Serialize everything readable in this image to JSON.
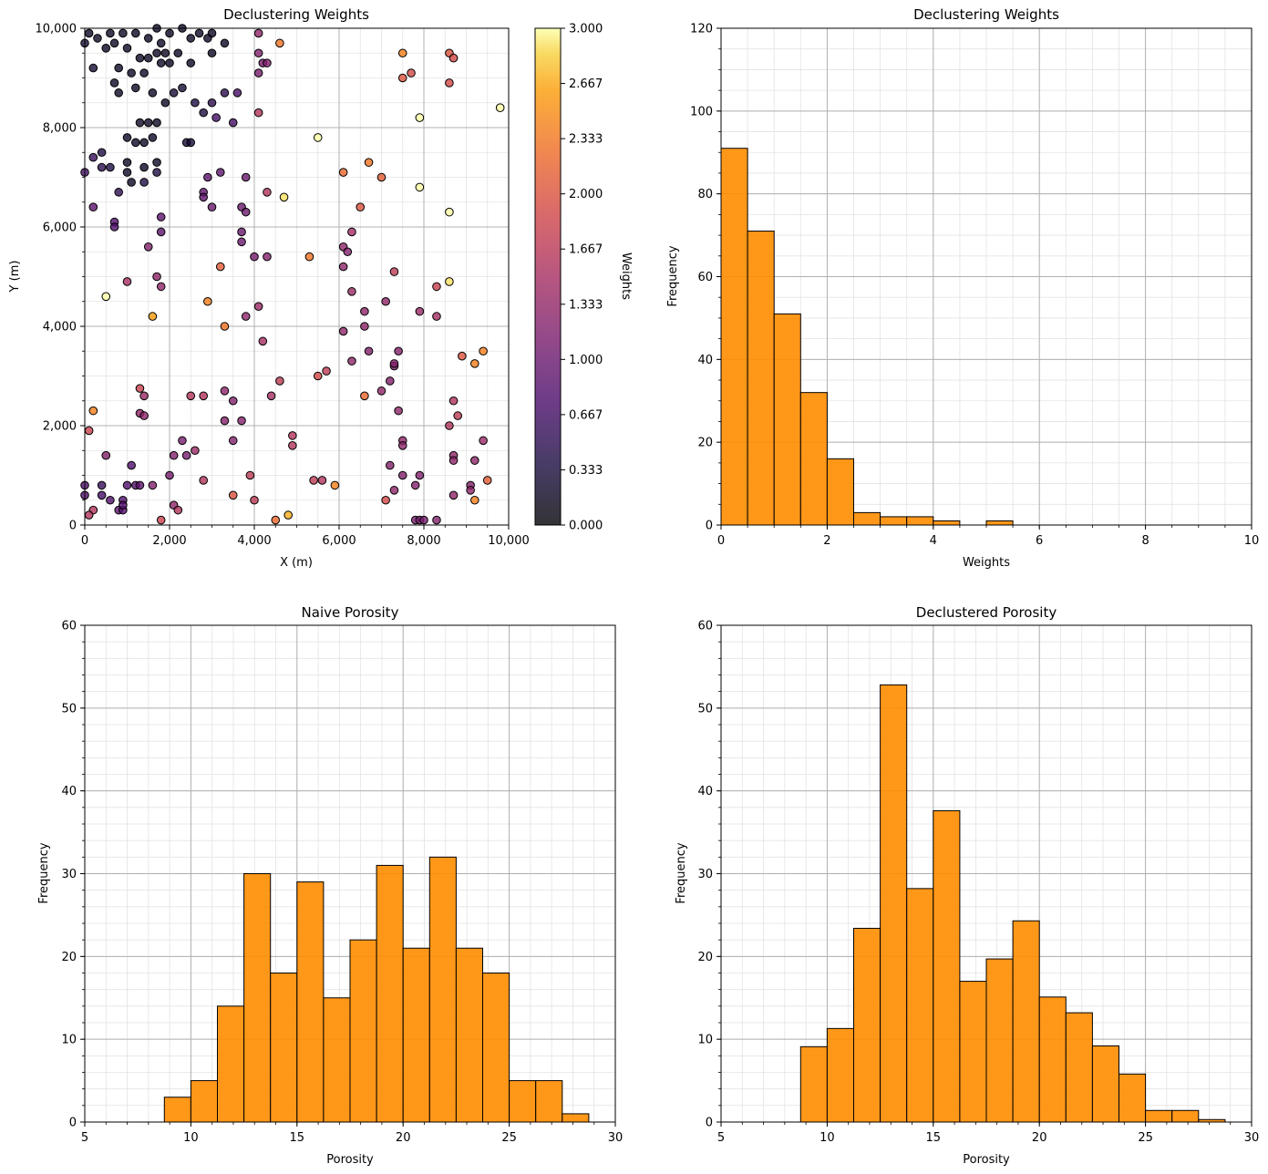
{
  "chart_data": [
    {
      "type": "scatter",
      "title": "Declustering Weights",
      "xlabel": "X (m)",
      "ylabel": "Y (m)",
      "xlim": [
        0,
        10000
      ],
      "ylim": [
        0,
        10000
      ],
      "xticks": [
        "0",
        "2,000",
        "4,000",
        "6,000",
        "8,000",
        "10,000"
      ],
      "yticks": [
        "0",
        "2,000",
        "4,000",
        "6,000",
        "8,000",
        "10,000"
      ],
      "grid": true,
      "colorbar": {
        "label": "Weights",
        "range": [
          0,
          3
        ],
        "ticks": [
          "0.000",
          "0.333",
          "0.667",
          "1.000",
          "1.333",
          "1.667",
          "2.000",
          "2.333",
          "2.667",
          "3.000"
        ],
        "colormap": "inferno"
      },
      "points": [
        [
          100,
          9900,
          0.2
        ],
        [
          300,
          9800,
          0.2
        ],
        [
          600,
          9900,
          0.2
        ],
        [
          500,
          9600,
          0.2
        ],
        [
          900,
          9900,
          0.2
        ],
        [
          1200,
          9900,
          0.2
        ],
        [
          1500,
          9800,
          0.2
        ],
        [
          1700,
          10000,
          0.2
        ],
        [
          2000,
          9900,
          0.2
        ],
        [
          2300,
          10000,
          0.2
        ],
        [
          2700,
          9900,
          0.2
        ],
        [
          3000,
          9900,
          0.2
        ],
        [
          1800,
          9700,
          0.2
        ],
        [
          2500,
          9800,
          0.2
        ],
        [
          2900,
          9800,
          0.2
        ],
        [
          3300,
          9700,
          0.2
        ],
        [
          200,
          9200,
          0.3
        ],
        [
          700,
          9700,
          0.2
        ],
        [
          800,
          9200,
          0.2
        ],
        [
          1000,
          9600,
          0.2
        ],
        [
          1300,
          9400,
          0.2
        ],
        [
          1500,
          9400,
          0.2
        ],
        [
          1700,
          9500,
          0.2
        ],
        [
          1900,
          9500,
          0.2
        ],
        [
          2200,
          9500,
          0.2
        ],
        [
          2500,
          9300,
          0.2
        ],
        [
          3000,
          9500,
          0.2
        ],
        [
          1100,
          9100,
          0.2
        ],
        [
          1400,
          9100,
          0.2
        ],
        [
          1800,
          9300,
          0.2
        ],
        [
          2000,
          9300,
          0.2
        ],
        [
          700,
          8900,
          0.2
        ],
        [
          800,
          8700,
          0.2
        ],
        [
          1200,
          8800,
          0.2
        ],
        [
          1600,
          8700,
          0.2
        ],
        [
          1900,
          8500,
          0.2
        ],
        [
          2100,
          8700,
          0.3
        ],
        [
          2300,
          8800,
          0.3
        ],
        [
          2600,
          8500,
          0.4
        ],
        [
          2800,
          8300,
          0.4
        ],
        [
          3000,
          8500,
          0.5
        ],
        [
          3300,
          8700,
          0.5
        ],
        [
          3600,
          8700,
          0.7
        ],
        [
          3100,
          8200,
          0.7
        ],
        [
          1300,
          8100,
          0.2
        ],
        [
          1500,
          8100,
          0.2
        ],
        [
          1700,
          8100,
          0.2
        ],
        [
          1000,
          7800,
          0.2
        ],
        [
          1200,
          7700,
          0.2
        ],
        [
          1400,
          7700,
          0.2
        ],
        [
          1600,
          7800,
          0.2
        ],
        [
          2400,
          7700,
          0.3
        ],
        [
          2500,
          7700,
          0.3
        ],
        [
          3500,
          8100,
          0.7
        ],
        [
          4100,
          8300,
          1.6
        ],
        [
          200,
          7400,
          0.6
        ],
        [
          400,
          7500,
          0.4
        ],
        [
          400,
          7200,
          0.5
        ],
        [
          600,
          7200,
          0.4
        ],
        [
          1000,
          7300,
          0.2
        ],
        [
          1000,
          7100,
          0.2
        ],
        [
          1400,
          7200,
          0.2
        ],
        [
          1700,
          7300,
          0.2
        ],
        [
          1100,
          6900,
          0.2
        ],
        [
          1400,
          6900,
          0.4
        ],
        [
          1700,
          7100,
          0.4
        ],
        [
          800,
          6700,
          0.5
        ],
        [
          0,
          7100,
          0.7
        ],
        [
          2900,
          7000,
          0.9
        ],
        [
          3200,
          7100,
          0.9
        ],
        [
          2800,
          6700,
          0.9
        ],
        [
          2800,
          6600,
          0.9
        ],
        [
          3000,
          6400,
          1.0
        ],
        [
          3800,
          7000,
          1.0
        ],
        [
          4300,
          6700,
          1.6
        ],
        [
          4700,
          6600,
          2.9
        ],
        [
          200,
          6400,
          0.9
        ],
        [
          700,
          6100,
          0.8
        ],
        [
          700,
          6000,
          0.8
        ],
        [
          1800,
          6200,
          0.9
        ],
        [
          1800,
          5900,
          0.9
        ],
        [
          1500,
          5600,
          1.2
        ],
        [
          3700,
          6400,
          1.0
        ],
        [
          3800,
          6300,
          1.0
        ],
        [
          3700,
          5900,
          1.0
        ],
        [
          3700,
          5700,
          1.0
        ],
        [
          4000,
          5400,
          1.1
        ],
        [
          4300,
          5400,
          1.2
        ],
        [
          3200,
          5200,
          2.1
        ],
        [
          5300,
          5400,
          2.3
        ],
        [
          500,
          4600,
          3.0
        ],
        [
          1000,
          4900,
          1.5
        ],
        [
          1700,
          5000,
          1.3
        ],
        [
          1800,
          4800,
          1.3
        ],
        [
          1600,
          4200,
          2.6
        ],
        [
          2900,
          4500,
          2.4
        ],
        [
          3800,
          4200,
          1.3
        ],
        [
          4100,
          4400,
          1.4
        ],
        [
          3300,
          4000,
          2.3
        ],
        [
          4200,
          3700,
          1.5
        ],
        [
          100,
          1900,
          1.8
        ],
        [
          200,
          2300,
          2.4
        ],
        [
          200,
          300,
          1.6
        ],
        [
          100,
          200,
          1.6
        ],
        [
          400,
          800,
          0.6
        ],
        [
          400,
          600,
          0.7
        ],
        [
          500,
          1400,
          1.2
        ],
        [
          600,
          500,
          0.8
        ],
        [
          800,
          300,
          0.9
        ],
        [
          900,
          300,
          0.8
        ],
        [
          900,
          500,
          0.8
        ],
        [
          900,
          400,
          0.8
        ],
        [
          1000,
          800,
          0.8
        ],
        [
          1100,
          1200,
          0.8
        ],
        [
          1200,
          800,
          0.8
        ],
        [
          1300,
          800,
          0.9
        ],
        [
          0,
          600,
          0.8
        ],
        [
          0,
          800,
          0.8
        ],
        [
          1300,
          2750,
          1.8
        ],
        [
          1400,
          2600,
          1.4
        ],
        [
          1300,
          2250,
          1.3
        ],
        [
          1400,
          2200,
          1.3
        ],
        [
          1600,
          800,
          1.2
        ],
        [
          1800,
          100,
          1.8
        ],
        [
          2000,
          1000,
          1.1
        ],
        [
          2100,
          1400,
          1.2
        ],
        [
          2100,
          400,
          1.3
        ],
        [
          2200,
          300,
          1.6
        ],
        [
          2300,
          1700,
          1.1
        ],
        [
          2400,
          1400,
          1.1
        ],
        [
          2500,
          2600,
          1.6
        ],
        [
          2600,
          1500,
          1.4
        ],
        [
          2800,
          2600,
          1.6
        ],
        [
          2800,
          900,
          1.6
        ],
        [
          3300,
          2700,
          1.3
        ],
        [
          3300,
          2100,
          1.2
        ],
        [
          3500,
          2500,
          1.2
        ],
        [
          3500,
          1700,
          1.2
        ],
        [
          3500,
          600,
          2.0
        ],
        [
          3700,
          2100,
          1.2
        ],
        [
          3900,
          1000,
          1.7
        ],
        [
          4000,
          500,
          1.7
        ],
        [
          4400,
          2600,
          1.5
        ],
        [
          4500,
          100,
          2.2
        ],
        [
          4600,
          2900,
          1.7
        ],
        [
          4800,
          200,
          2.7
        ],
        [
          4900,
          1800,
          1.6
        ],
        [
          4900,
          1600,
          1.6
        ],
        [
          5400,
          900,
          1.7
        ],
        [
          5500,
          3000,
          1.9
        ],
        [
          5600,
          900,
          1.6
        ],
        [
          5700,
          3100,
          1.7
        ],
        [
          5900,
          800,
          2.4
        ],
        [
          6100,
          3900,
          1.3
        ],
        [
          6100,
          5600,
          1.3
        ],
        [
          6100,
          5200,
          1.3
        ],
        [
          6200,
          5500,
          1.2
        ],
        [
          6300,
          4700,
          1.4
        ],
        [
          6300,
          5900,
          1.5
        ],
        [
          6300,
          3300,
          1.3
        ],
        [
          6600,
          4300,
          1.3
        ],
        [
          6600,
          4000,
          1.3
        ],
        [
          6700,
          3500,
          1.2
        ],
        [
          6600,
          2600,
          2.2
        ],
        [
          7000,
          2700,
          1.3
        ],
        [
          7100,
          4500,
          1.3
        ],
        [
          7100,
          500,
          1.9
        ],
        [
          7200,
          1200,
          1.2
        ],
        [
          7200,
          2900,
          1.2
        ],
        [
          7300,
          3200,
          1.2
        ],
        [
          7300,
          3250,
          1.2
        ],
        [
          7300,
          700,
          1.3
        ],
        [
          7300,
          5100,
          1.7
        ],
        [
          7400,
          3500,
          1.2
        ],
        [
          7400,
          2300,
          1.3
        ],
        [
          7500,
          1700,
          1.3
        ],
        [
          7500,
          1600,
          1.3
        ],
        [
          7500,
          1000,
          1.2
        ],
        [
          7800,
          100,
          1.1
        ],
        [
          7900,
          100,
          1.1
        ],
        [
          8000,
          100,
          1.1
        ],
        [
          7800,
          800,
          1.2
        ],
        [
          7900,
          1000,
          1.2
        ],
        [
          8300,
          100,
          1.2
        ],
        [
          7900,
          4300,
          1.4
        ],
        [
          8300,
          4200,
          1.5
        ],
        [
          8300,
          4800,
          1.8
        ],
        [
          8600,
          4900,
          2.9
        ],
        [
          8600,
          2000,
          1.6
        ],
        [
          8700,
          2500,
          1.6
        ],
        [
          8800,
          2200,
          1.7
        ],
        [
          8700,
          1400,
          1.3
        ],
        [
          8700,
          1300,
          1.3
        ],
        [
          8700,
          600,
          1.3
        ],
        [
          8900,
          3400,
          2.0
        ],
        [
          9100,
          800,
          1.2
        ],
        [
          9100,
          700,
          1.3
        ],
        [
          9200,
          1300,
          1.3
        ],
        [
          9200,
          500,
          2.4
        ],
        [
          9200,
          3250,
          2.4
        ],
        [
          9400,
          3500,
          2.4
        ],
        [
          9400,
          1700,
          1.4
        ],
        [
          9500,
          900,
          2.1
        ],
        [
          6100,
          7100,
          2.2
        ],
        [
          6500,
          6400,
          2.0
        ],
        [
          6700,
          7300,
          2.3
        ],
        [
          7000,
          7000,
          2.1
        ],
        [
          5500,
          7800,
          3.0
        ],
        [
          7500,
          9500,
          2.4
        ],
        [
          7500,
          9000,
          2.0
        ],
        [
          7700,
          9100,
          1.9
        ],
        [
          7900,
          8200,
          3.0
        ],
        [
          7900,
          6800,
          3.0
        ],
        [
          8600,
          9500,
          2.0
        ],
        [
          8700,
          9400,
          1.9
        ],
        [
          8600,
          8900,
          1.9
        ],
        [
          8600,
          6300,
          3.0
        ],
        [
          9800,
          8400,
          3.0
        ],
        [
          4100,
          9900,
          1.3
        ],
        [
          4100,
          9500,
          1.2
        ],
        [
          4200,
          9300,
          1.1
        ],
        [
          4100,
          9100,
          1.1
        ],
        [
          4300,
          9300,
          1.2
        ],
        [
          4600,
          9700,
          2.3
        ],
        [
          0,
          9700,
          0.3
        ]
      ]
    },
    {
      "type": "bar",
      "title": "Declustering Weights",
      "xlabel": "Weights",
      "ylabel": "Frequency",
      "xlim": [
        0,
        10
      ],
      "ylim": [
        0,
        120
      ],
      "xticks": [
        "0",
        "2",
        "4",
        "6",
        "8",
        "10"
      ],
      "yticks": [
        "0",
        "20",
        "40",
        "60",
        "80",
        "100",
        "120"
      ],
      "bin_start": 0,
      "bin_width": 0.5,
      "values": [
        91,
        71,
        51,
        32,
        16,
        3,
        2,
        2,
        1,
        0,
        1,
        0,
        0,
        0,
        0,
        0,
        0,
        0,
        0,
        0
      ],
      "grid": true
    },
    {
      "type": "bar",
      "title": "Naive Porosity",
      "xlabel": "Porosity",
      "ylabel": "Frequency",
      "xlim": [
        5,
        30
      ],
      "ylim": [
        0,
        60
      ],
      "xticks": [
        "5",
        "10",
        "15",
        "20",
        "25",
        "30"
      ],
      "yticks": [
        "0",
        "10",
        "20",
        "30",
        "40",
        "50",
        "60"
      ],
      "bin_start": 5,
      "bin_width": 1.25,
      "values": [
        0,
        0,
        0,
        3,
        5,
        14,
        30,
        18,
        29,
        15,
        22,
        31,
        21,
        32,
        21,
        18,
        5,
        5,
        1,
        0
      ],
      "grid": true
    },
    {
      "type": "bar",
      "title": "Declustered Porosity",
      "xlabel": "Porosity",
      "ylabel": "Frequency",
      "xlim": [
        5,
        30
      ],
      "ylim": [
        0,
        60
      ],
      "xticks": [
        "5",
        "10",
        "15",
        "20",
        "25",
        "30"
      ],
      "yticks": [
        "0",
        "10",
        "20",
        "30",
        "40",
        "50",
        "60"
      ],
      "bin_start": 5,
      "bin_width": 1.25,
      "values": [
        0,
        0,
        0,
        9.1,
        11.3,
        23.4,
        52.8,
        28.2,
        37.6,
        17.0,
        19.7,
        24.3,
        15.1,
        13.2,
        9.2,
        5.8,
        1.4,
        1.4,
        0.3,
        0
      ],
      "grid": true
    }
  ]
}
